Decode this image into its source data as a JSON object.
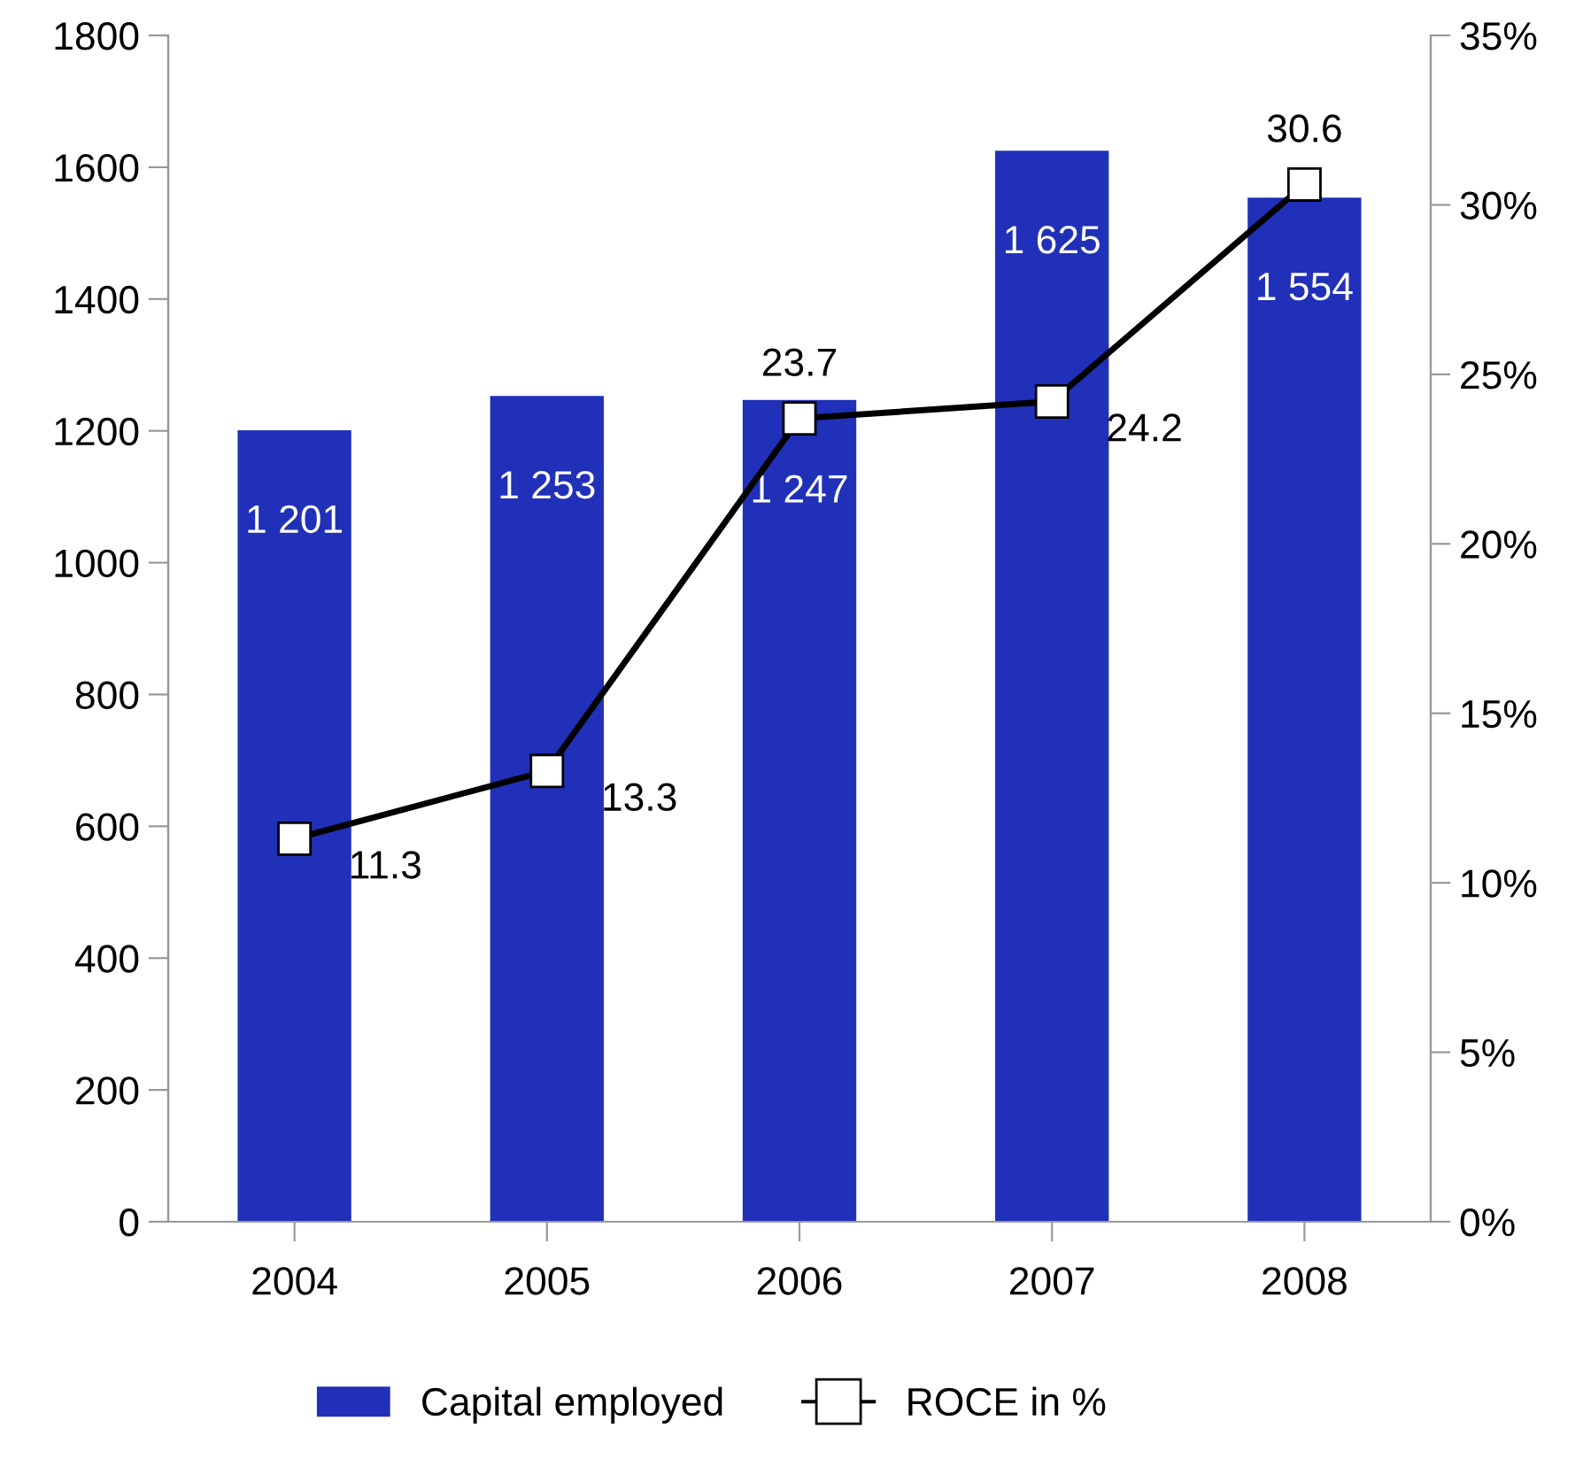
{
  "chart_data": {
    "type": "bar",
    "categories": [
      "2004",
      "2005",
      "2006",
      "2007",
      "2008"
    ],
    "series": [
      {
        "name": "Capital employed",
        "color": "#2130b8",
        "values": [
          1201,
          1253,
          1247,
          1625,
          1554
        ],
        "value_labels": [
          "1 201",
          "1 253",
          "1 247",
          "1 625",
          "1 554"
        ]
      },
      {
        "name": "ROCE in %",
        "type": "line",
        "axis": "y2",
        "color": "#000000",
        "marker": "square",
        "values": [
          11.3,
          13.3,
          23.7,
          24.2,
          30.6
        ],
        "value_labels": [
          "11.3",
          "13.3",
          "23.7",
          "24.2",
          "30.6"
        ]
      }
    ],
    "ylim": [
      0,
      1800
    ],
    "yticks": [
      0,
      200,
      400,
      600,
      800,
      1000,
      1200,
      1400,
      1600,
      1800
    ],
    "y2lim": [
      0,
      35
    ],
    "y2ticks": [
      {
        "value": 0,
        "label": "0%"
      },
      {
        "value": 5,
        "label": "5%"
      },
      {
        "value": 10,
        "label": "10%"
      },
      {
        "value": 15,
        "label": "15%"
      },
      {
        "value": 20,
        "label": "20%"
      },
      {
        "value": 25,
        "label": "25%"
      },
      {
        "value": 30,
        "label": "30%"
      },
      {
        "value": 35,
        "label": "35%"
      }
    ],
    "grid": false,
    "legend": "bottom"
  }
}
